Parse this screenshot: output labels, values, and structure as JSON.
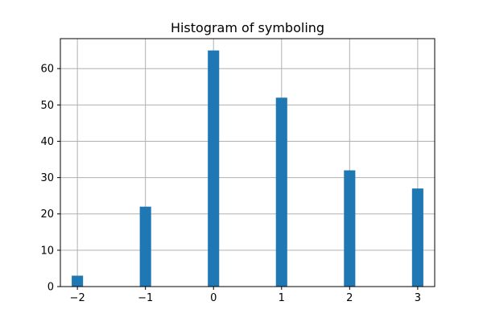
{
  "chart_data": {
    "type": "bar",
    "title": "Histogram of symboling",
    "xlabel": "",
    "ylabel": "",
    "bins": [
      {
        "x": -2,
        "count": 3
      },
      {
        "x": -1,
        "count": 22
      },
      {
        "x": 0,
        "count": 65
      },
      {
        "x": 1,
        "count": 52
      },
      {
        "x": 2,
        "count": 32
      },
      {
        "x": 3,
        "count": 27
      }
    ],
    "bin_width": 0.1667,
    "xlim": [
      -2.25,
      3.25
    ],
    "ylim": [
      0,
      68.25
    ],
    "xticks": [
      -2,
      -1,
      0,
      1,
      2,
      3
    ],
    "xtick_labels": [
      "−2",
      "−1",
      "0",
      "1",
      "2",
      "3"
    ],
    "yticks": [
      0,
      10,
      20,
      30,
      40,
      50,
      60
    ],
    "ytick_labels": [
      "0",
      "10",
      "20",
      "30",
      "40",
      "50",
      "60"
    ],
    "grid": true,
    "bar_color": "#1f77b4"
  }
}
